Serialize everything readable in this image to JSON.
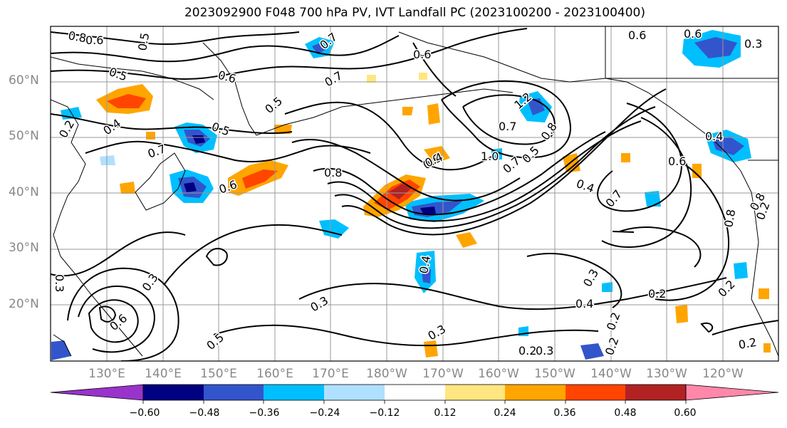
{
  "title": "2023092900 F048 700 hPa PV, IVT Landfall PC (2023100200 - 2023100400)",
  "lat_labels": [
    "60°N",
    "50°N",
    "40°N",
    "30°N",
    "20°N"
  ],
  "lon_labels": [
    "130°E",
    "140°E",
    "150°E",
    "160°E",
    "170°E",
    "180°W",
    "170°W",
    "160°W",
    "150°W",
    "140°W",
    "130°W",
    "120°W"
  ],
  "colorbar": {
    "colors": [
      "#9933cc",
      "#000080",
      "#3355cc",
      "#00bfff",
      "#b0e0ff",
      "#ffffff",
      "#ffe680",
      "#ffa500",
      "#ff4500",
      "#b22222",
      "#ff88aa"
    ],
    "tick_labels": [
      "−0.60",
      "−0.48",
      "−0.36",
      "−0.24",
      "−0.12",
      "0.12",
      "0.24",
      "0.36",
      "0.48",
      "0.60"
    ]
  },
  "contour_labels": [
    "0.8",
    "0.6",
    "0.5",
    "0.5",
    "0.6",
    "0.7",
    "0.6",
    "0.4",
    "0.7",
    "0.5",
    "0.5",
    "0.7",
    "0.6",
    "0.6",
    "0.7",
    "1.2",
    "0.8",
    "1.0",
    "0.7",
    "0.5",
    "0.8",
    "0.6",
    "0.6",
    "0.3",
    "0.4",
    "0.7",
    "0.4",
    "0.6",
    "0.8",
    "0.8",
    "0.4",
    "0.6",
    "0.3",
    "0.5",
    "0.3",
    "0.4",
    "0.3",
    "0.2",
    "0.2",
    "0.3",
    "0.2",
    "0.3",
    "0.2",
    "0.2",
    "0.2",
    "0.2",
    "0.2",
    "0.4",
    "0.3"
  ]
}
